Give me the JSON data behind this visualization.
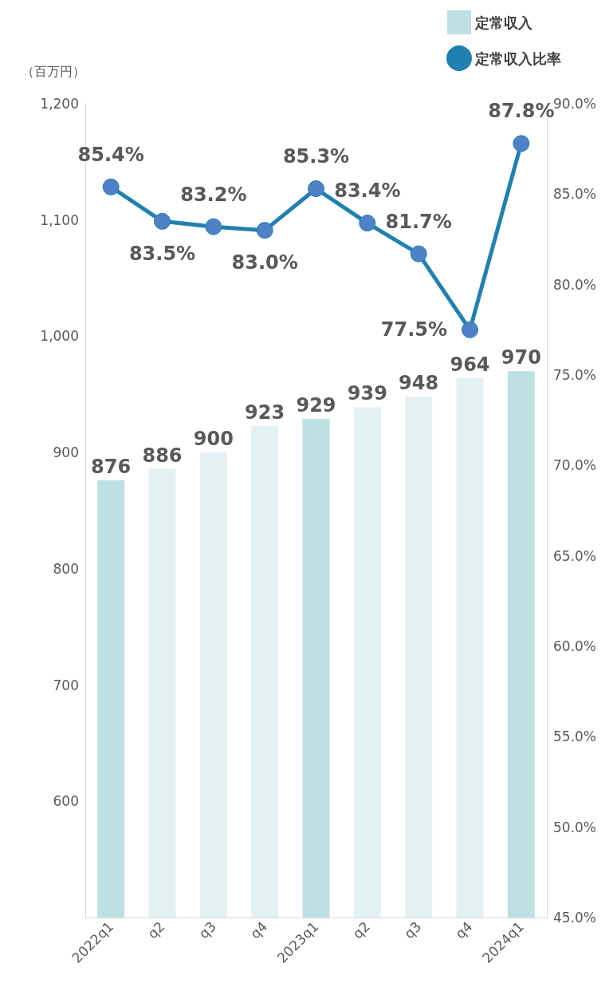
{
  "chart_data": {
    "type": "bar",
    "ylabel": "（百万円）",
    "categories": [
      "2022q1",
      "q2",
      "q3",
      "q4",
      "2023q1",
      "q2",
      "q3",
      "q4",
      "2024q1"
    ],
    "series": [
      {
        "name": "定常収入",
        "color": "#bde0e3",
        "colors": [
          "#bde0e3",
          "#e3f1f2",
          "#e3f1f2",
          "#e3f1f2",
          "#bde0e3",
          "#e3f1f2",
          "#e3f1f2",
          "#e3f1f2",
          "#bde0e3"
        ],
        "values": [
          876,
          886,
          900,
          923,
          929,
          939,
          948,
          964,
          970
        ],
        "data_labels": true
      },
      {
        "name": "定常収入比率",
        "type": "line",
        "axis": "y2",
        "color": "#2080b0",
        "marker": "circle",
        "values": [
          85.4,
          83.5,
          83.2,
          83.0,
          85.3,
          83.4,
          81.7,
          77.5,
          87.8
        ],
        "value_labels": [
          "85.4%",
          "83.5%",
          "83.2%",
          "83.0%",
          "85.3%",
          "83.4%",
          "81.7%",
          "77.5%",
          "87.8%"
        ]
      }
    ],
    "ylim": [
      500,
      1200
    ],
    "yticks": [
      {
        "value": 600,
        "label": "600"
      },
      {
        "value": 700,
        "label": "700"
      },
      {
        "value": 800,
        "label": "800"
      },
      {
        "value": 900,
        "label": "900"
      },
      {
        "value": 1000,
        "label": "1,000"
      },
      {
        "value": 1100,
        "label": "1,100"
      },
      {
        "value": 1200,
        "label": "1,200"
      }
    ],
    "y2lim": [
      45,
      90
    ],
    "y2ticks": [
      {
        "value": 45,
        "label": "45.0%"
      },
      {
        "value": 50,
        "label": "50.0%"
      },
      {
        "value": 55,
        "label": "55.0%"
      },
      {
        "value": 60,
        "label": "60.0%"
      },
      {
        "value": 65,
        "label": "65.0%"
      },
      {
        "value": 70,
        "label": "70.0%"
      },
      {
        "value": 75,
        "label": "75.0%"
      },
      {
        "value": 80,
        "label": "80.0%"
      },
      {
        "value": 85,
        "label": "85.0%"
      },
      {
        "value": 90,
        "label": "90.0%"
      }
    ],
    "grid": false,
    "legend": "top right"
  }
}
